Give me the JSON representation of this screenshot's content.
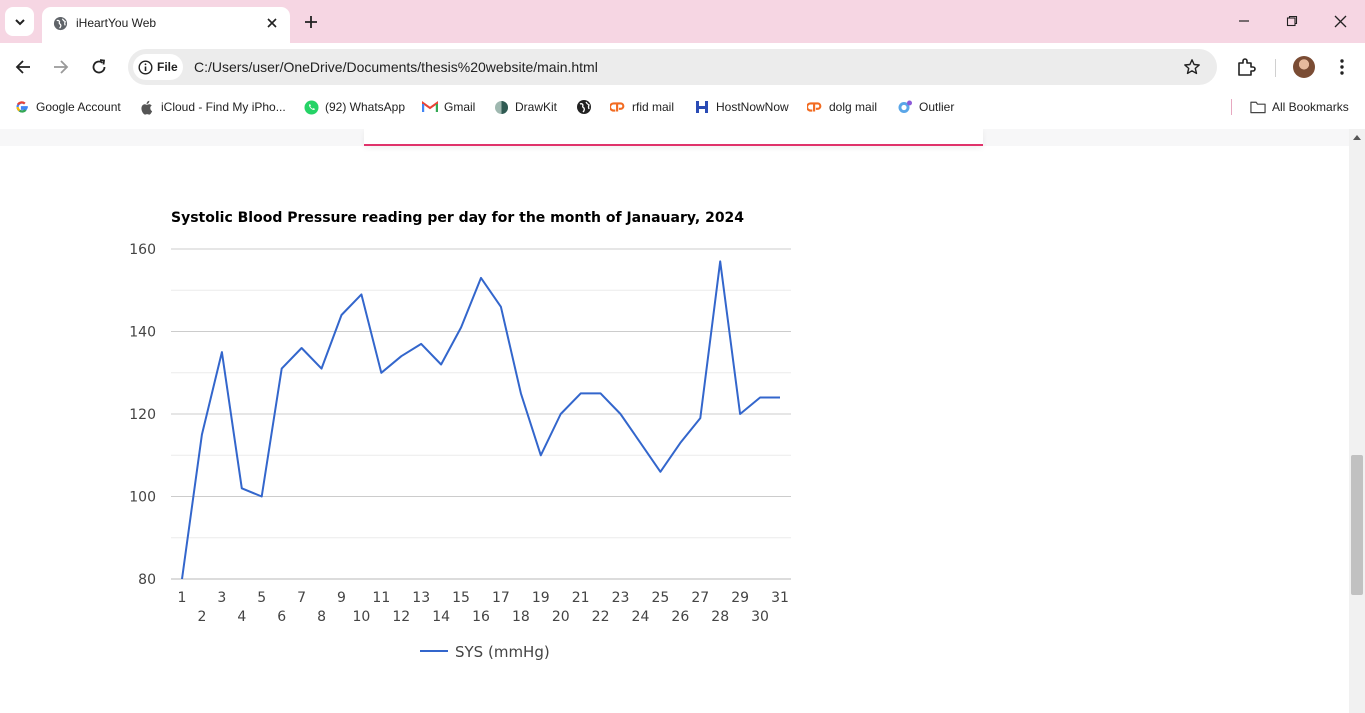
{
  "browser": {
    "tab": {
      "title": "iHeartYou Web"
    },
    "omnibox": {
      "chip_label": "File",
      "url": "C:/Users/user/OneDrive/Documents/thesis%20website/main.html"
    },
    "bookmarks": [
      {
        "label": "Google Account",
        "icon": "google-icon"
      },
      {
        "label": "iCloud - Find My iPho...",
        "icon": "apple-icon"
      },
      {
        "label": "(92) WhatsApp",
        "icon": "whatsapp-icon"
      },
      {
        "label": "Gmail",
        "icon": "gmail-icon"
      },
      {
        "label": "DrawKit",
        "icon": "drawkit-icon"
      },
      {
        "label": "",
        "icon": "globe-icon"
      },
      {
        "label": "rfid mail",
        "icon": "cpanel-icon"
      },
      {
        "label": "HostNowNow",
        "icon": "hostnownow-icon"
      },
      {
        "label": "dolg mail",
        "icon": "cpanel-icon"
      },
      {
        "label": "Outlier",
        "icon": "outlier-icon"
      }
    ],
    "all_bookmarks_label": "All Bookmarks"
  },
  "colors": {
    "tabstrip": "#f6d6e3",
    "accent_border": "#e0336b",
    "series_line": "#3366cc"
  },
  "chart_data": {
    "type": "line",
    "title": "Systolic Blood Pressure reading per day for the month of Janauary, 2024",
    "xlabel": "",
    "ylabel": "",
    "x": [
      1,
      2,
      3,
      4,
      5,
      6,
      7,
      8,
      9,
      10,
      11,
      12,
      13,
      14,
      15,
      16,
      17,
      18,
      19,
      20,
      21,
      22,
      23,
      24,
      25,
      26,
      27,
      28,
      29,
      30,
      31
    ],
    "series": [
      {
        "name": "SYS (mmHg)",
        "values": [
          80,
          115,
          135,
          102,
          100,
          131,
          136,
          131,
          144,
          149,
          130,
          134,
          137,
          132,
          141,
          153,
          146,
          125,
          110,
          120,
          125,
          125,
          120,
          113,
          106,
          113,
          119,
          157,
          120,
          124,
          124
        ]
      }
    ],
    "ylim": [
      80,
      160
    ],
    "yticks": [
      80,
      100,
      120,
      140,
      160
    ],
    "grid": true,
    "legend": "bottom"
  }
}
